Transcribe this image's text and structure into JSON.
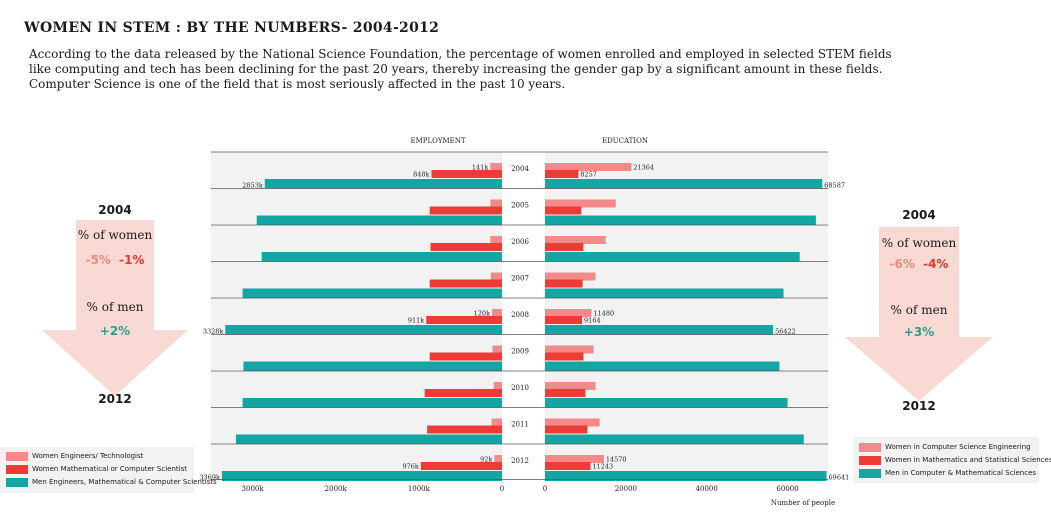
{
  "title": "WOMEN IN STEM : BY THE NUMBERS- 2004-2012",
  "intro": [
    "According to the data released by the National Science Foundation, the percentage of women enrolled and employed in selected STEM fields",
    "like computing and tech has been declining for the past 20 years, thereby increasing the gender gap by a significant amount in these fields.",
    "Computer Science is one of the field that is most seriously affected in the past 10 years."
  ],
  "left_arrow": {
    "year_start": "2004",
    "women_label": "% of women",
    "women_val_a": "-5%",
    "women_val_b": "-1%",
    "men_label": "% of men",
    "men_val": "+2%",
    "year_end": "2012"
  },
  "right_arrow": {
    "year_start": "2004",
    "women_label": "% of women",
    "women_val_a": "-6%",
    "women_val_b": "-4%",
    "men_label": "% of men",
    "men_val": "+3%",
    "year_end": "2012"
  },
  "legend_left": [
    {
      "label": "Women Engineers/ Technologist",
      "color": "#f4898a"
    },
    {
      "label": "Women Mathematical or Computer Scientist",
      "color": "#ee3b35"
    },
    {
      "label": "Men Engineers, Mathematical & Computer Scientists",
      "color": "#14a5a5"
    }
  ],
  "legend_right": [
    {
      "label": "Women in Computer Science Engineering",
      "color": "#f4898a"
    },
    {
      "label": "Women in Mathematics and Statistical Sciences",
      "color": "#ee3b35"
    },
    {
      "label": "Men in Computer & Mathematical Sciences",
      "color": "#14a5a5"
    }
  ],
  "colors": {
    "light": "#f4898a",
    "red": "#ee3b35",
    "teal": "#14a5a5",
    "arrow": "#f9d9d4",
    "green_text": "#2a9d8f",
    "salmon_text": "#f08a7a",
    "red_text": "#e03a2a"
  },
  "chart_data": {
    "type": "bar",
    "orientation": "horizontal",
    "categories": [
      "2004",
      "2005",
      "2006",
      "2007",
      "2008",
      "2009",
      "2010",
      "2011",
      "2012"
    ],
    "panels": [
      {
        "name": "EMPLOYMENT",
        "xlim": [
          0,
          3500
        ],
        "ticks": [
          3000,
          2000,
          1000,
          0
        ],
        "tick_labels": [
          "3000k",
          "2000k",
          "1000k",
          "0"
        ],
        "series": [
          {
            "name": "Women Engineers/ Technologist",
            "values": [
              141,
              140,
              140,
              135,
              120,
              115,
              100,
              125,
              92
            ]
          },
          {
            "name": "Women Mathematical or Computer Scientist",
            "values": [
              848,
              870,
              860,
              870,
              911,
              870,
              930,
              900,
              976
            ]
          },
          {
            "name": "Men Engineers, Mathematical & Computer Scientists",
            "values": [
              2853,
              2950,
              2890,
              3120,
              3328,
              3110,
              3120,
              3200,
              3369
            ]
          }
        ],
        "value_labels": {
          "2004": [
            "141k",
            "848k",
            "2853k"
          ],
          "2008": [
            "120k",
            "911k",
            "3328k"
          ],
          "2012": [
            "92k",
            "976k",
            "3369k"
          ]
        }
      },
      {
        "name": "EDUCATION",
        "xlim": [
          0,
          70000
        ],
        "ticks": [
          0,
          20000,
          40000,
          60000
        ],
        "tick_labels": [
          "0",
          "20000",
          "40000",
          "60000"
        ],
        "xlabel": "Number of people",
        "series": [
          {
            "name": "Women in Computer Science Engineering",
            "values": [
              21364,
              17500,
              15000,
              12500,
              11480,
              12000,
              12500,
              13500,
              14570
            ]
          },
          {
            "name": "Women in Mathematics and Statistical Sciences",
            "values": [
              8257,
              9000,
              9500,
              9300,
              9164,
              9500,
              10000,
              10500,
              11243
            ]
          },
          {
            "name": "Men in Computer & Mathematical Sciences",
            "values": [
              68587,
              67000,
              63000,
              59000,
              56422,
              58000,
              60000,
              64000,
              69641
            ]
          }
        ],
        "value_labels": {
          "2004": [
            "21364",
            "8257",
            "68587"
          ],
          "2008": [
            "11480",
            "9164",
            "56422"
          ],
          "2012": [
            "14570",
            "11243",
            "69641"
          ]
        }
      }
    ]
  }
}
